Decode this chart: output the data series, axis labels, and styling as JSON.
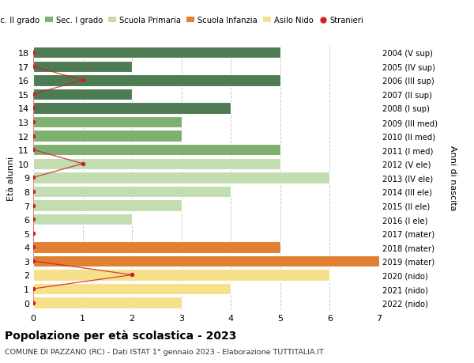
{
  "ages": [
    18,
    17,
    16,
    15,
    14,
    13,
    12,
    11,
    10,
    9,
    8,
    7,
    6,
    5,
    4,
    3,
    2,
    1,
    0
  ],
  "right_labels": [
    "2004 (V sup)",
    "2005 (IV sup)",
    "2006 (III sup)",
    "2007 (II sup)",
    "2008 (I sup)",
    "2009 (III med)",
    "2010 (II med)",
    "2011 (I med)",
    "2012 (V ele)",
    "2013 (IV ele)",
    "2014 (III ele)",
    "2015 (II ele)",
    "2016 (I ele)",
    "2017 (mater)",
    "2018 (mater)",
    "2019 (mater)",
    "2020 (nido)",
    "2021 (nido)",
    "2022 (nido)"
  ],
  "bar_values": [
    5,
    2,
    5,
    2,
    4,
    3,
    3,
    5,
    5,
    6,
    4,
    3,
    2,
    0,
    5,
    7,
    6,
    4,
    3
  ],
  "bar_colors": [
    "#4d7c52",
    "#4d7c52",
    "#4d7c52",
    "#4d7c52",
    "#4d7c52",
    "#80b070",
    "#80b070",
    "#80b070",
    "#c2ddb0",
    "#c2ddb0",
    "#c2ddb0",
    "#c2ddb0",
    "#c2ddb0",
    "#c2ddb0",
    "#e08030",
    "#e08030",
    "#f7e08a",
    "#f7e08a",
    "#f7e08a"
  ],
  "stranieri_x": [
    0,
    0,
    1,
    0,
    0,
    0,
    0,
    0,
    1,
    0,
    0,
    0,
    0,
    0,
    0,
    0,
    2,
    0,
    0
  ],
  "stranieri_ages": [
    18,
    17,
    16,
    15,
    14,
    13,
    12,
    11,
    10,
    9,
    8,
    7,
    6,
    5,
    4,
    3,
    2,
    1,
    0
  ],
  "legend_labels": [
    "Sec. II grado",
    "Sec. I grado",
    "Scuola Primaria",
    "Scuola Infanzia",
    "Asilo Nido",
    "Stranieri"
  ],
  "legend_colors": [
    "#4d7c52",
    "#80b070",
    "#c2ddb0",
    "#e08030",
    "#f7e08a",
    "#cc2222"
  ],
  "title": "Popolazione per età scolastica - 2023",
  "subtitle": "COMUNE DI PAZZANO (RC) - Dati ISTAT 1° gennaio 2023 - Elaborazione TUTTITALIA.IT",
  "ylabel_left": "Età alunni",
  "ylabel_right": "Anni di nascita",
  "xlim": [
    0,
    7
  ],
  "ylim_min": -0.55,
  "ylim_max": 18.55,
  "bg_color": "#ffffff",
  "grid_color": "#cccccc",
  "bar_height": 0.82
}
